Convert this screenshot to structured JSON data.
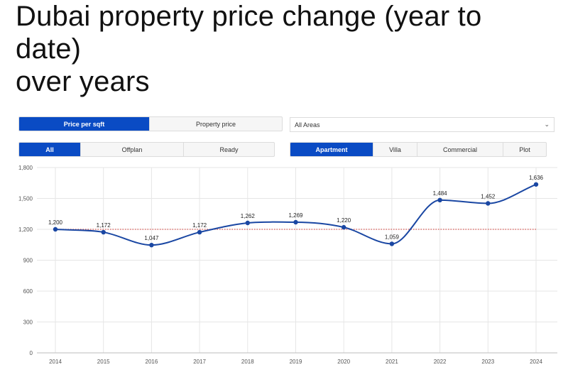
{
  "title_lines": [
    "Dubai property price change (year to",
    "date)",
    "over years"
  ],
  "controls": {
    "metric_toggle": [
      {
        "label": "Price per sqft",
        "active": true
      },
      {
        "label": "Property price",
        "active": false
      }
    ],
    "area_select": {
      "value": "All Areas",
      "icon": "chevron-down-icon"
    },
    "status_toggle": [
      {
        "label": "All",
        "active": true
      },
      {
        "label": "Offplan",
        "active": false
      },
      {
        "label": "Ready",
        "active": false
      }
    ],
    "type_toggle": [
      {
        "label": "Apartment",
        "active": true
      },
      {
        "label": "Villa",
        "active": false
      },
      {
        "label": "Commercial",
        "active": false
      },
      {
        "label": "Plot",
        "active": false
      }
    ]
  },
  "colors": {
    "accent": "#0a4bc4",
    "line": "#1a47a3",
    "reference_line": "#d9534f",
    "grid": "#e6e6e6"
  },
  "chart_data": {
    "type": "line",
    "x": [
      "2014",
      "2015",
      "2016",
      "2017",
      "2018",
      "2019",
      "2020",
      "2021",
      "2022",
      "2023",
      "2024"
    ],
    "series": [
      {
        "values": [
          1200,
          1172,
          1047,
          1172,
          1262,
          1269,
          1220,
          1059,
          1484,
          1452,
          1636
        ]
      }
    ],
    "data_labels": [
      "1,200",
      "1,172",
      "1,047",
      "1,172",
      "1,262",
      "1,269",
      "1,220",
      "1,059",
      "1,484",
      "1,452",
      "1,636"
    ],
    "reference_line": {
      "value": 1200,
      "style": "dotted"
    },
    "ylim": [
      0,
      1800
    ],
    "yticks": [
      0,
      300,
      600,
      900,
      1200,
      1500,
      1800
    ],
    "ytick_labels": [
      "0",
      "300",
      "600",
      "900",
      "1,200",
      "1,500",
      "1,800"
    ],
    "grid": true,
    "smooth": true
  }
}
